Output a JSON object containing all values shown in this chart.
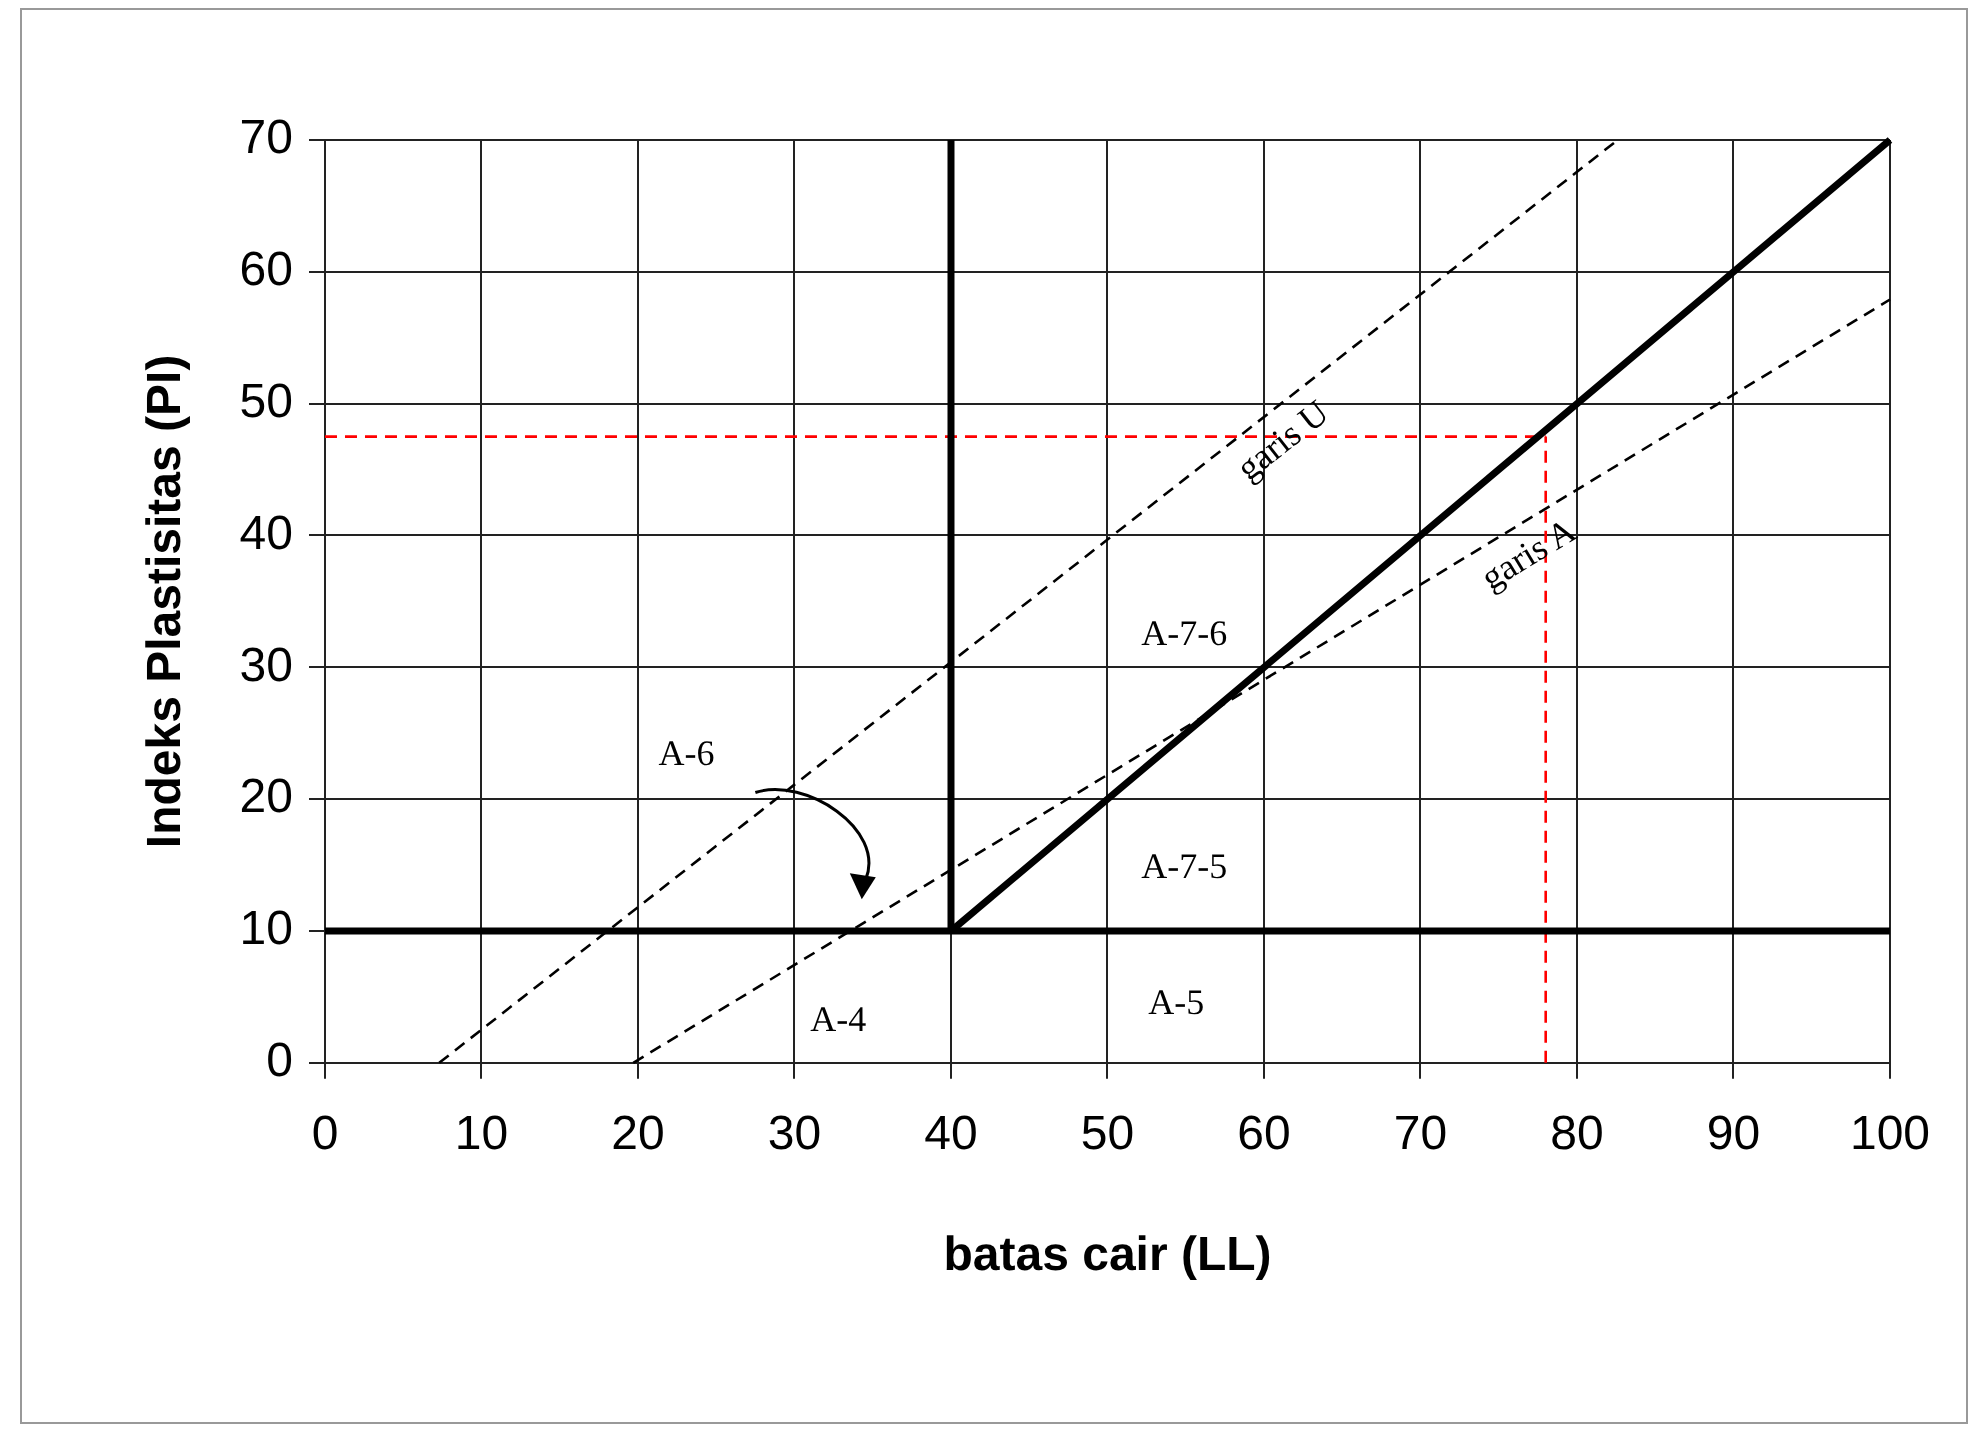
{
  "chart_data": {
    "type": "line",
    "xlabel": "batas cair (LL)",
    "ylabel": "Indeks Plastisitas (PI)",
    "xlim": [
      0,
      100
    ],
    "ylim": [
      0,
      70
    ],
    "xticks": [
      0,
      10,
      20,
      30,
      40,
      50,
      60,
      70,
      80,
      90,
      100
    ],
    "yticks": [
      0,
      10,
      20,
      30,
      40,
      50,
      60,
      70
    ],
    "grid": true,
    "legend": false,
    "marker": "none",
    "series": [
      {
        "name": "garis U",
        "color": "#000000",
        "line_style": "dashed",
        "x": [
          7.3,
          82.6
        ],
        "values": [
          0,
          70
        ]
      },
      {
        "name": "garis A",
        "color": "#000000",
        "line_style": "dashed",
        "x": [
          19.7,
          100
        ],
        "values": [
          0,
          57.9
        ]
      },
      {
        "color": "#000000",
        "line_style": "solid",
        "x": [
          0,
          100
        ],
        "values": [
          10,
          10
        ]
      },
      {
        "color": "#000000",
        "line_style": "solid",
        "x": [
          40,
          40
        ],
        "values": [
          10,
          70
        ]
      },
      {
        "color": "#000000",
        "line_style": "solid",
        "x": [
          40,
          100
        ],
        "values": [
          10,
          70
        ]
      },
      {
        "color": "#ff0000",
        "line_style": "dashed",
        "x": [
          0,
          78
        ],
        "values": [
          47.5,
          47.5
        ]
      },
      {
        "color": "#ff0000",
        "line_style": "dashed",
        "x": [
          78,
          78
        ],
        "values": [
          0,
          47.5
        ]
      }
    ],
    "annotations": [
      "A-6",
      "A-4",
      "A-5",
      "A-7-5",
      "A-7-6"
    ]
  }
}
